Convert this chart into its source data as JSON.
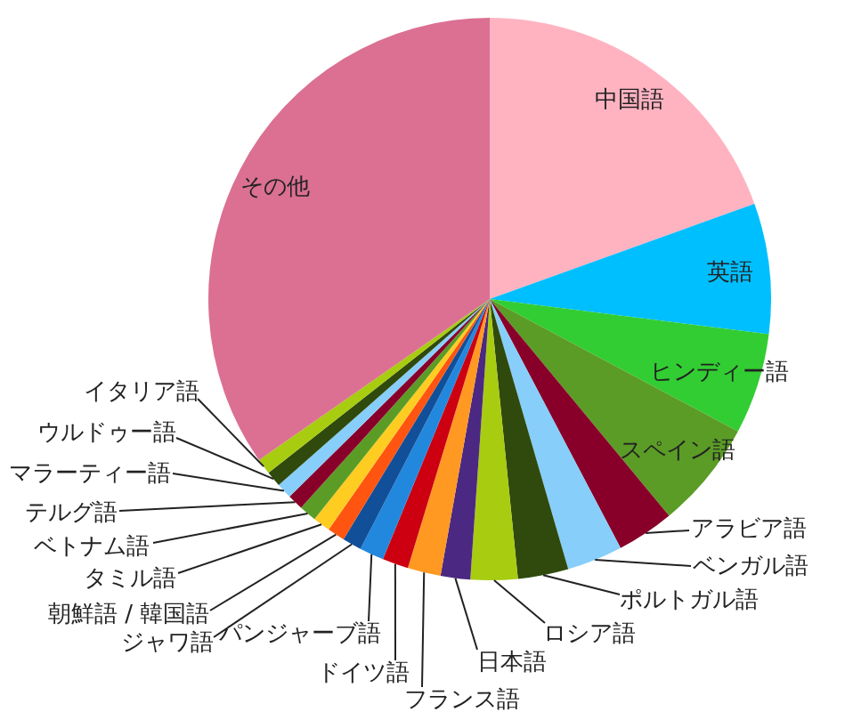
{
  "chart_data": {
    "type": "pie",
    "categories": [
      "中国語",
      "英語",
      "ヒンディー語",
      "スペイン語",
      "アラビア語",
      "ベンガル語",
      "ポルトガル語",
      "ロシア語",
      "日本語",
      "フランス語",
      "ドイツ語",
      "パンジャーブ語",
      "ジャワ語",
      "朝鮮語 / 韓国語",
      "タミル語",
      "ベトナム語",
      "テルグ語",
      "マラーティー語",
      "ウルドゥー語",
      "イタリア語",
      "その他"
    ],
    "values": [
      19.5,
      7.5,
      5.8,
      6.2,
      3.3,
      3.2,
      2.9,
      2.7,
      1.7,
      1.9,
      1.5,
      1.4,
      1.1,
      1.0,
      1.0,
      1.0,
      0.9,
      0.9,
      0.9,
      0.9,
      34.7
    ],
    "colors": [
      "#ffb3c1",
      "#00bfff",
      "#32cd32",
      "#5b9c26",
      "#88002a",
      "#87cefa",
      "#2f4a0c",
      "#a8cc10",
      "#4b2882",
      "#ff9922",
      "#cc0011",
      "#2288dd",
      "#114f99",
      "#ff5511",
      "#ffcc22",
      "#5b9c26",
      "#88002a",
      "#87cefa",
      "#2f4a0c",
      "#a8cc10",
      "#db7093"
    ],
    "legend": false
  }
}
